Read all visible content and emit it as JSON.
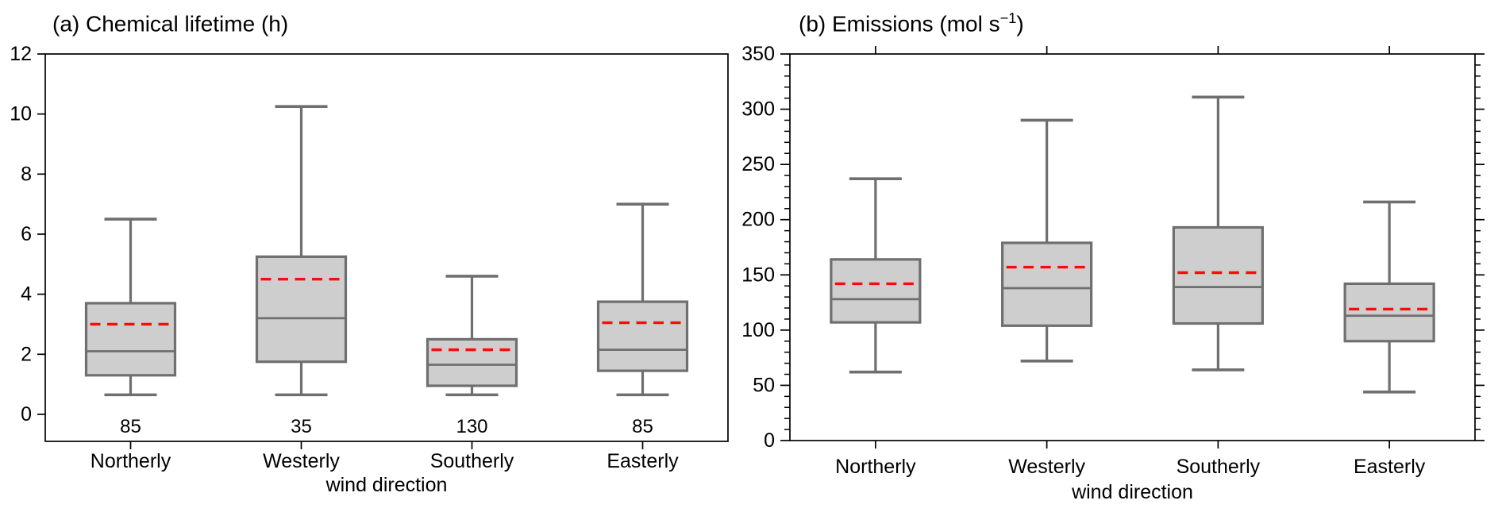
{
  "style": {
    "background": "#ffffff",
    "frame_color": "#000000",
    "text_color": "#000000",
    "box_fill": "#cecece",
    "box_edge": "#6f6f6f",
    "whisker_color": "#6f6f6f",
    "median_color": "#6f6f6f",
    "mean_color": "#fb0a0a",
    "count_color": "#1414ee"
  },
  "chart_data": [
    {
      "type": "boxplot",
      "panel_label": "(a)",
      "title": "(a) Chemical lifetime (h)",
      "title_parts": {
        "pre": "(a) Chemical lifetime (h)",
        "sup": "",
        "post": ""
      },
      "xlabel": "wind direction",
      "ylabel": "",
      "categories": [
        "Northerly",
        "Westerly",
        "Southerly",
        "Easterly"
      ],
      "ylim": [
        -0.9,
        12
      ],
      "yticks": [
        0,
        2,
        4,
        6,
        8,
        10,
        12
      ],
      "y_minor_step": null,
      "mirror_y_axis": false,
      "category_ticks_top": false,
      "mean_line": "red-dashed",
      "counts": [
        85,
        35,
        130,
        85
      ],
      "series": [
        {
          "category": "Northerly",
          "whisker_low": 0.65,
          "q1": 1.3,
          "median": 2.1,
          "mean": 3.0,
          "q3": 3.7,
          "whisker_high": 6.5
        },
        {
          "category": "Westerly",
          "whisker_low": 0.65,
          "q1": 1.75,
          "median": 3.2,
          "mean": 4.5,
          "q3": 5.25,
          "whisker_high": 10.25
        },
        {
          "category": "Southerly",
          "whisker_low": 0.65,
          "q1": 0.95,
          "median": 1.65,
          "mean": 2.15,
          "q3": 2.5,
          "whisker_high": 4.6
        },
        {
          "category": "Easterly",
          "whisker_low": 0.65,
          "q1": 1.45,
          "median": 2.15,
          "mean": 3.05,
          "q3": 3.75,
          "whisker_high": 7.0
        }
      ]
    },
    {
      "type": "boxplot",
      "panel_label": "(b)",
      "title": "(b) Emissions (mol s−1)",
      "title_parts": {
        "pre": "(b) Emissions (mol s",
        "sup": "−1",
        "post": ")"
      },
      "xlabel": "wind direction",
      "ylabel": "",
      "categories": [
        "Northerly",
        "Westerly",
        "Southerly",
        "Easterly"
      ],
      "ylim": [
        0,
        350
      ],
      "yticks": [
        0,
        50,
        100,
        150,
        200,
        250,
        300,
        350
      ],
      "y_minor_step": 10,
      "mirror_y_axis": true,
      "category_ticks_top": true,
      "mean_line": "red-dashed",
      "counts": null,
      "series": [
        {
          "category": "Northerly",
          "whisker_low": 62,
          "q1": 107,
          "median": 128,
          "mean": 142,
          "q3": 164,
          "whisker_high": 237
        },
        {
          "category": "Westerly",
          "whisker_low": 72,
          "q1": 104,
          "median": 138,
          "mean": 157,
          "q3": 179,
          "whisker_high": 290
        },
        {
          "category": "Southerly",
          "whisker_low": 64,
          "q1": 106,
          "median": 139,
          "mean": 152,
          "q3": 193,
          "whisker_high": 311
        },
        {
          "category": "Easterly",
          "whisker_low": 44,
          "q1": 90,
          "median": 113,
          "mean": 119,
          "q3": 142,
          "whisker_high": 216
        }
      ]
    }
  ]
}
